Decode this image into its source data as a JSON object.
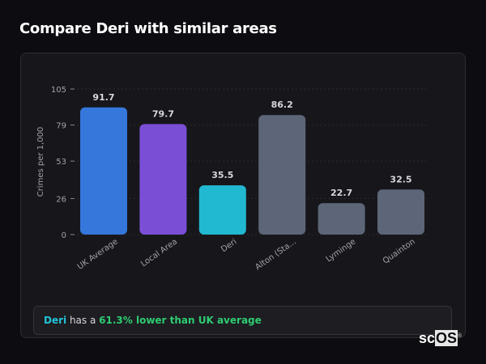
{
  "header": {
    "title": "Compare Deri with similar areas"
  },
  "chart_data": {
    "type": "bar",
    "title": "",
    "xlabel": "",
    "ylabel": "Crimes per 1,000",
    "ylim": [
      0,
      105
    ],
    "yticks": [
      0,
      26,
      53,
      79,
      105
    ],
    "grid": true,
    "categories": [
      "UK Average",
      "Local Area",
      "Deri",
      "Alton (Sta...",
      "Lyminge",
      "Quainton"
    ],
    "values": [
      91.7,
      79.7,
      35.5,
      86.2,
      22.7,
      32.5
    ],
    "data_labels": [
      "91.7",
      "79.7",
      "35.5",
      "86.2",
      "22.7",
      "32.5"
    ],
    "colors": [
      "#3577db",
      "#7a4fd6",
      "#21b9d1",
      "#5d6678",
      "#5d6678",
      "#5d6678"
    ]
  },
  "footer": {
    "area": "Deri",
    "middle": " has a ",
    "highlight": "61.3% lower than UK average"
  },
  "logo": {
    "text_sc": "sc",
    "text_os": "OS"
  }
}
